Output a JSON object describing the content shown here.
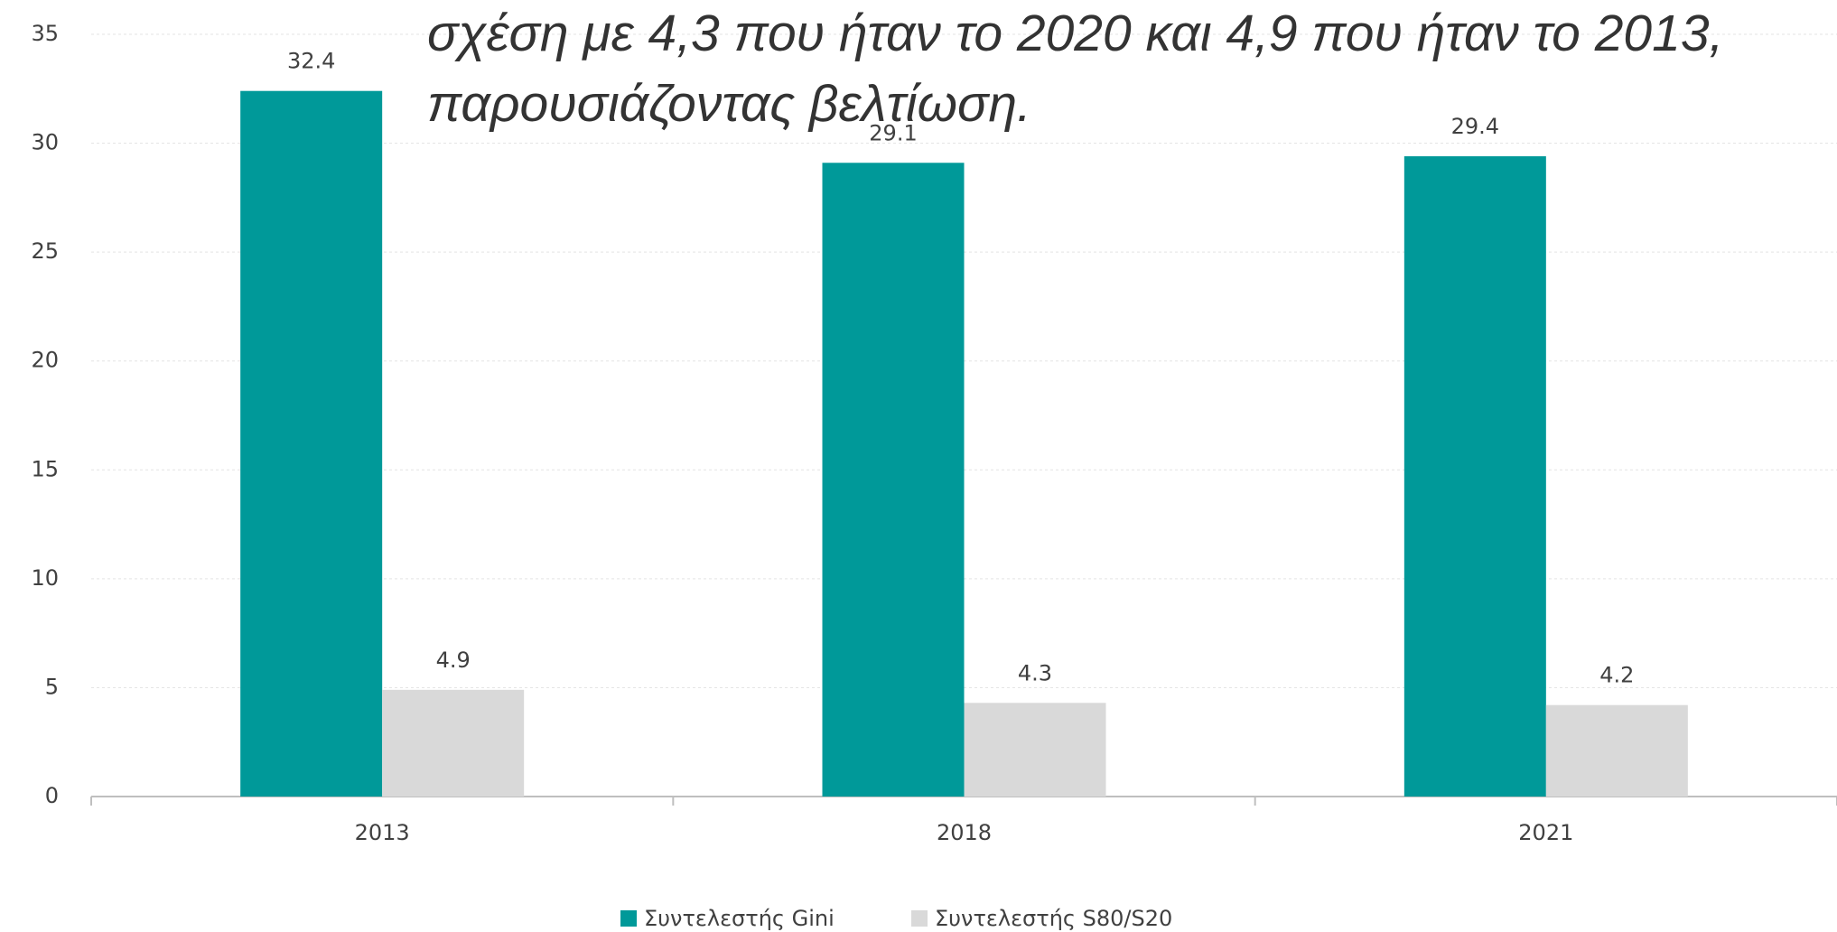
{
  "chart_data": {
    "type": "bar",
    "annotations": [
      "σχέση με 4,3 που ήταν το 2020 και 4,9 που ήταν το 2013,",
      "παρουσιάζοντας βελτίωση."
    ],
    "categories": [
      "2013",
      "2018",
      "2021"
    ],
    "series": [
      {
        "name": "Συντελεστής Gini",
        "color": "#009999",
        "values": [
          32.4,
          29.1,
          29.4
        ]
      },
      {
        "name": "Συντελεστής S80/S20",
        "color": "#d9d9d9",
        "values": [
          4.9,
          4.3,
          4.2
        ]
      }
    ],
    "ylim": [
      0,
      35
    ],
    "yticks": [
      0,
      5,
      10,
      15,
      20,
      25,
      30,
      35
    ],
    "grid": true,
    "legend": "bottom"
  }
}
